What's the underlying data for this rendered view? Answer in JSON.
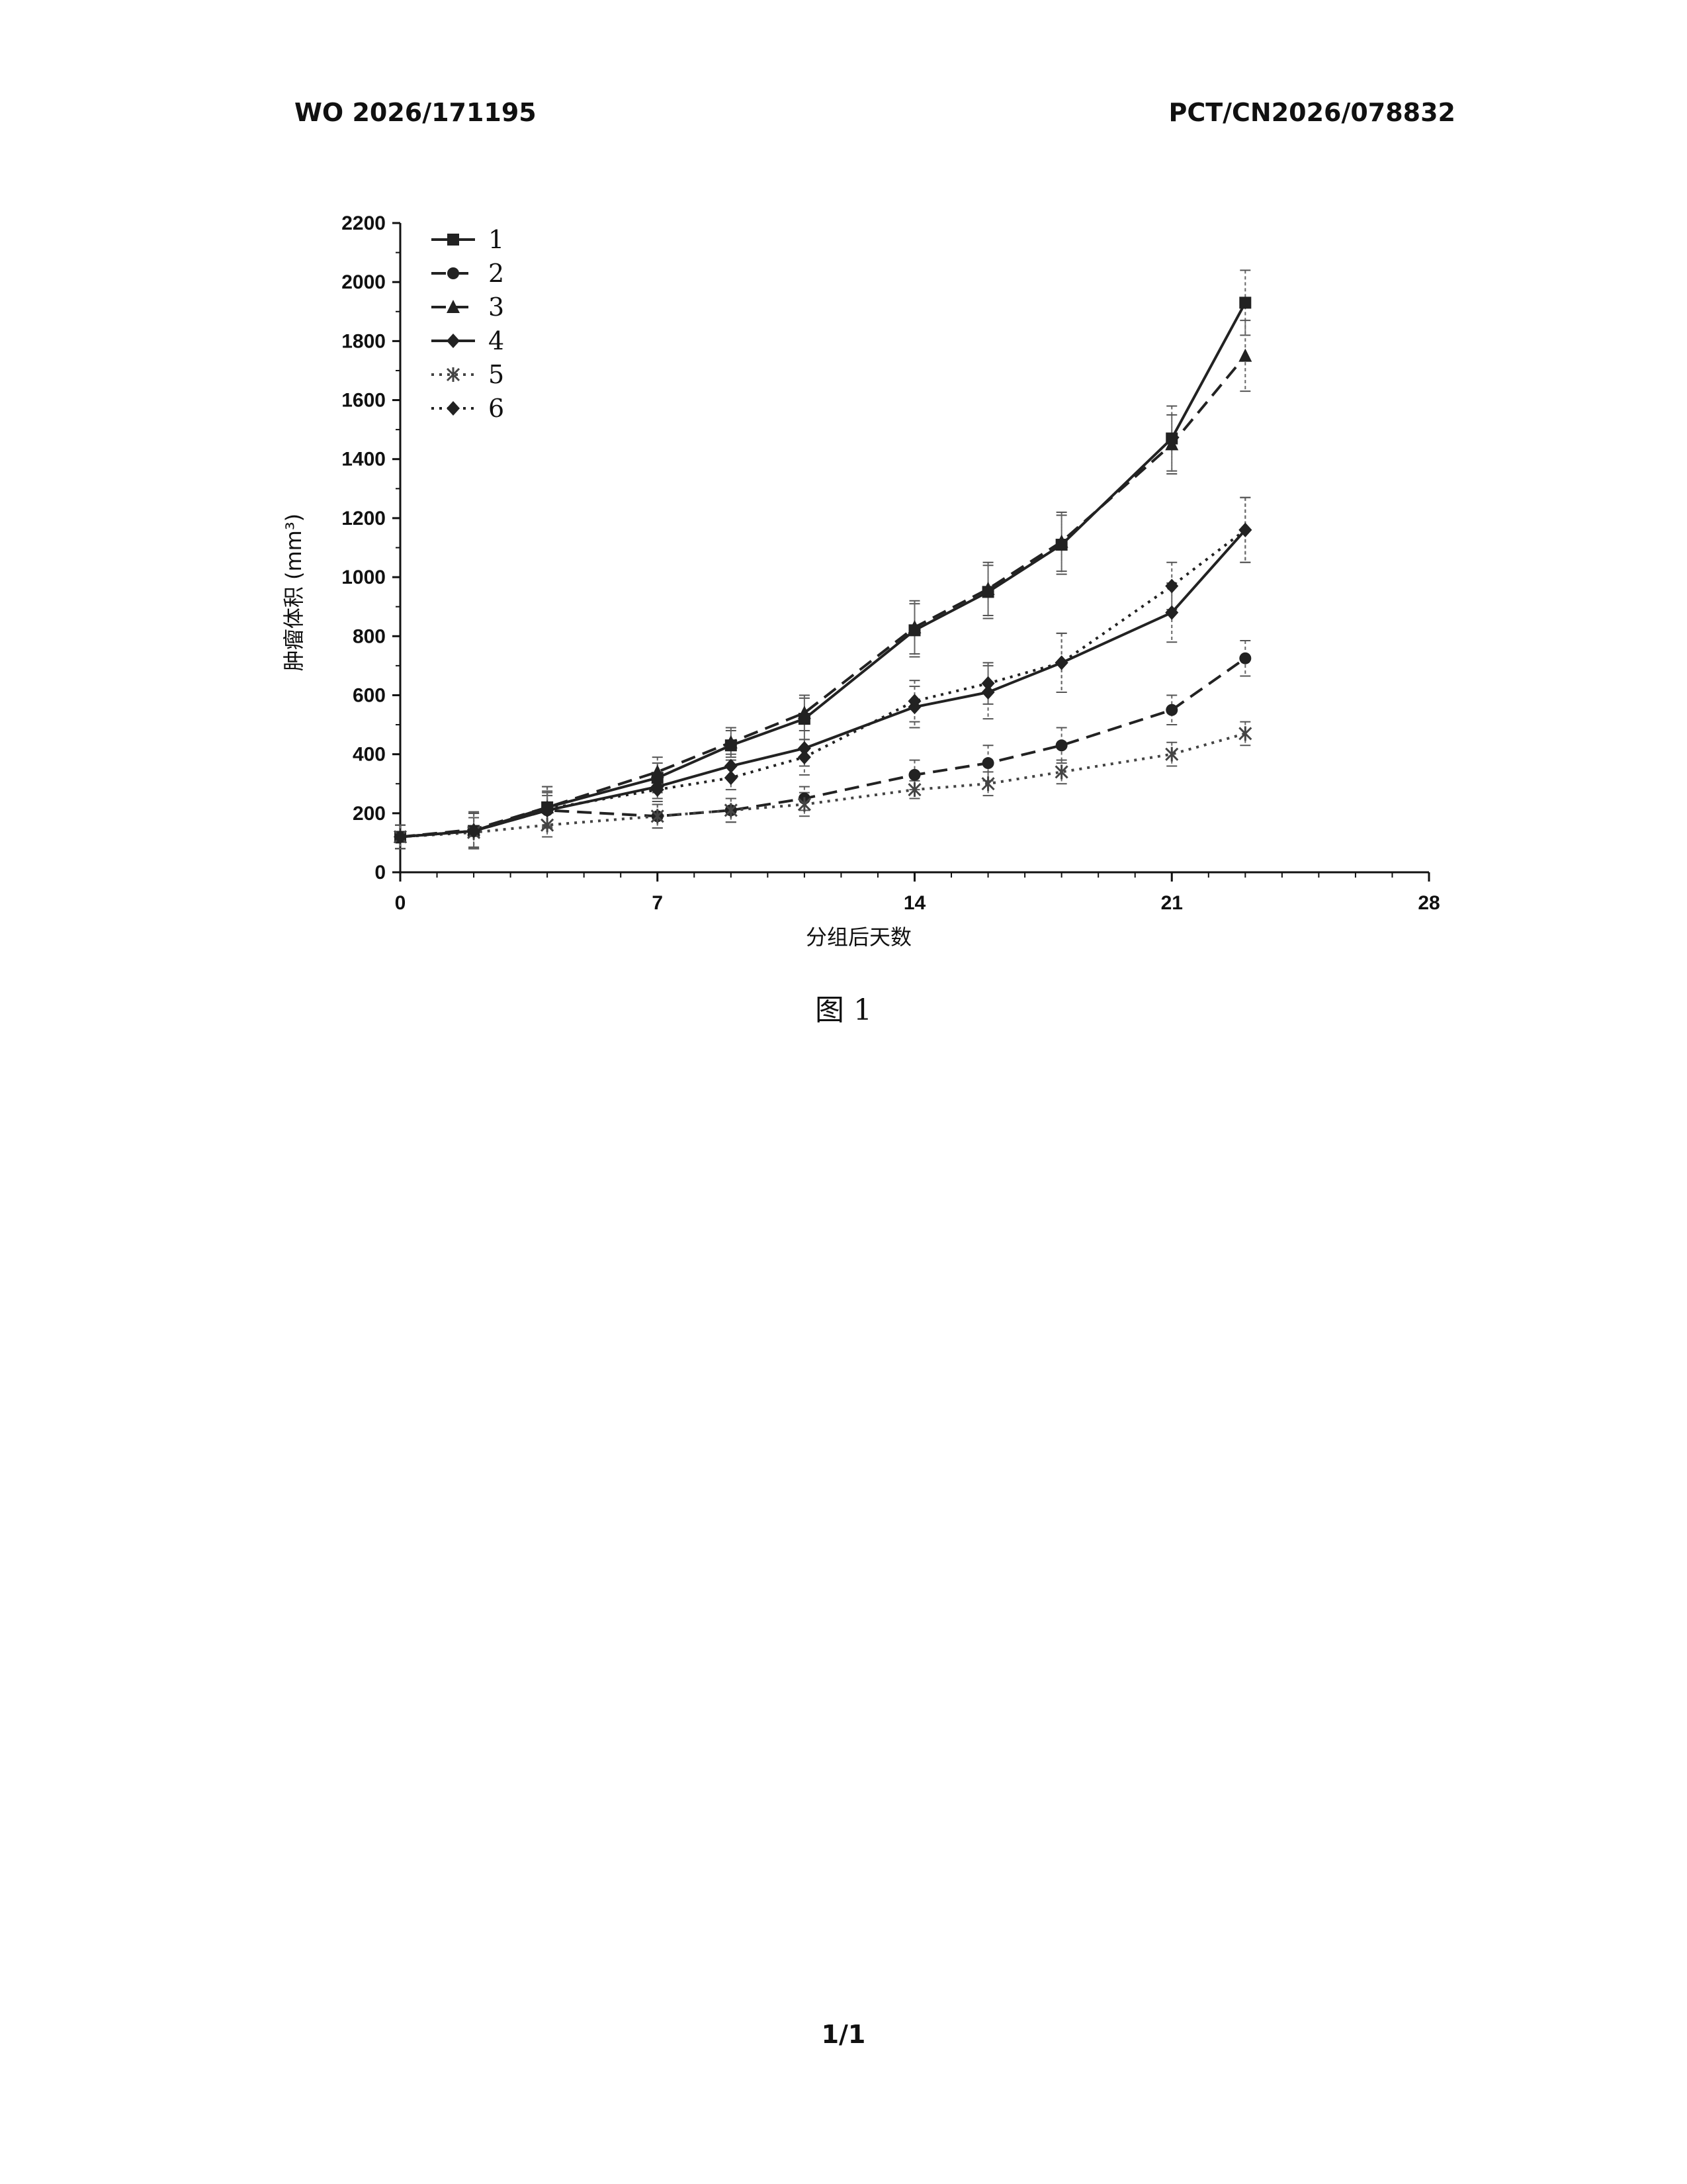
{
  "header": {
    "publication_number": "WO 2026/171195",
    "application_number": "PCT/CN2026/078832"
  },
  "figure": {
    "caption": "图 1"
  },
  "footer": {
    "page": "1/1"
  },
  "chart_data": {
    "type": "line",
    "title": "",
    "xlabel": "分组后天数",
    "ylabel": "肿瘤体积 (mm³)",
    "xlim": [
      0,
      28
    ],
    "ylim": [
      0,
      2200
    ],
    "xticks": [
      0,
      7,
      14,
      21,
      28
    ],
    "yticks": [
      0,
      200,
      400,
      600,
      800,
      1000,
      1200,
      1400,
      1600,
      1800,
      2000,
      2200
    ],
    "x": [
      0,
      2,
      4,
      7,
      9,
      11,
      14,
      16,
      18,
      21,
      23
    ],
    "legend_position": "top-left",
    "grid": false,
    "error_bars": true,
    "series": [
      {
        "name": "1",
        "marker": "square",
        "dash": "solid",
        "color": "#222222",
        "values": [
          120,
          140,
          220,
          320,
          430,
          520,
          820,
          950,
          1110,
          1470,
          1930
        ],
        "errors": [
          40,
          60,
          70,
          50,
          50,
          70,
          90,
          90,
          100,
          110,
          110
        ]
      },
      {
        "name": "2",
        "marker": "circle",
        "dash": "dashed",
        "color": "#222222",
        "values": [
          120,
          140,
          210,
          190,
          210,
          250,
          330,
          370,
          430,
          550,
          725
        ],
        "errors": [
          40,
          60,
          50,
          40,
          40,
          40,
          50,
          60,
          60,
          50,
          60
        ]
      },
      {
        "name": "3",
        "marker": "triangle",
        "dash": "dashed",
        "color": "#222222",
        "values": [
          120,
          145,
          220,
          340,
          440,
          540,
          830,
          960,
          1120,
          1450,
          1750
        ],
        "errors": [
          40,
          60,
          70,
          50,
          50,
          60,
          90,
          90,
          100,
          100,
          120
        ]
      },
      {
        "name": "4",
        "marker": "diamond",
        "dash": "solid",
        "color": "#222222",
        "values": [
          120,
          140,
          210,
          290,
          360,
          420,
          560,
          610,
          710,
          880,
          1160
        ],
        "errors": [
          40,
          60,
          60,
          40,
          40,
          60,
          70,
          90,
          100,
          100,
          110
        ]
      },
      {
        "name": "5",
        "marker": "x",
        "dash": "dotted",
        "color": "#444444",
        "values": [
          120,
          135,
          160,
          190,
          210,
          230,
          280,
          300,
          340,
          400,
          470
        ],
        "errors": [
          40,
          50,
          40,
          40,
          40,
          40,
          30,
          40,
          40,
          40,
          40
        ]
      },
      {
        "name": "6",
        "marker": "diamond",
        "dash": "dotted",
        "color": "#222222",
        "values": [
          120,
          140,
          215,
          280,
          320,
          390,
          580,
          640,
          710,
          970,
          1160
        ],
        "errors": [
          40,
          60,
          60,
          40,
          40,
          60,
          70,
          70,
          100,
          80,
          110
        ]
      }
    ]
  }
}
